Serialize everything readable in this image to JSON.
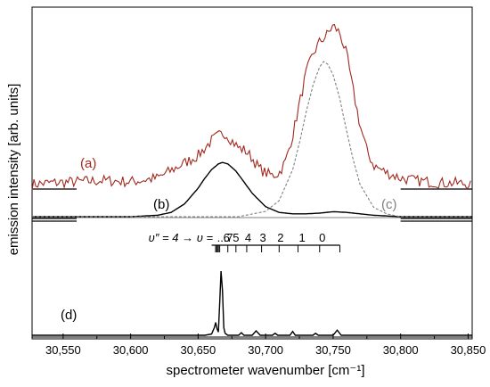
{
  "chart_data": {
    "type": "line",
    "xlabel": "spectrometer wavenumber [cm⁻¹]",
    "ylabel": "emission intensity [arb. units]",
    "xlim": [
      30527,
      30853
    ],
    "x_ticks": [
      30550,
      30600,
      30650,
      30700,
      30750,
      30800,
      30850
    ],
    "x_tick_labels": [
      "30,550",
      "30,600",
      "30,650",
      "30,700",
      "30,750",
      "30,800",
      "30,850"
    ],
    "grid": false,
    "legend": "none",
    "y_scale": "arbitrary units",
    "series": [
      {
        "name": "(a)",
        "color": "#a0281e",
        "style": "solid-noisy",
        "x": [
          30527,
          30540,
          30560,
          30580,
          30600,
          30620,
          30630,
          30640,
          30650,
          30655,
          30660,
          30665,
          30670,
          30675,
          30680,
          30685,
          30690,
          30695,
          30700,
          30705,
          30710,
          30715,
          30720,
          30725,
          30730,
          30735,
          30740,
          30745,
          30750,
          30755,
          30760,
          30765,
          30770,
          30775,
          30780,
          30790,
          30800,
          30810,
          30820,
          30830,
          30840,
          30853
        ],
        "y": [
          0.01,
          0.02,
          0.03,
          0.04,
          0.03,
          0.06,
          0.12,
          0.18,
          0.24,
          0.3,
          0.36,
          0.4,
          0.42,
          0.36,
          0.3,
          0.28,
          0.22,
          0.14,
          0.1,
          0.08,
          0.1,
          0.2,
          0.4,
          0.65,
          0.9,
          1.05,
          1.15,
          1.2,
          1.28,
          1.22,
          1.05,
          0.75,
          0.48,
          0.28,
          0.16,
          0.1,
          0.06,
          0.04,
          0.03,
          0.02,
          0.02,
          0.01
        ]
      },
      {
        "name": "(b)",
        "color": "#000000",
        "style": "solid",
        "x": [
          30527,
          30560,
          30600,
          30620,
          30630,
          30640,
          30650,
          30655,
          30660,
          30665,
          30668,
          30672,
          30678,
          30685,
          30690,
          30700,
          30710,
          30720,
          30730,
          30740,
          30750,
          30760,
          30770,
          30780,
          30790,
          30800,
          30853
        ],
        "y": [
          0.0,
          0.0,
          0.0,
          0.02,
          0.06,
          0.18,
          0.4,
          0.54,
          0.66,
          0.74,
          0.76,
          0.74,
          0.64,
          0.46,
          0.33,
          0.14,
          0.06,
          0.04,
          0.04,
          0.05,
          0.07,
          0.06,
          0.04,
          0.02,
          0.01,
          0.0,
          0.0
        ]
      },
      {
        "name": "(c)",
        "color": "#808080",
        "style": "dashed",
        "x": [
          30527,
          30680,
          30700,
          30710,
          30720,
          30725,
          30730,
          30735,
          30740,
          30743,
          30746,
          30750,
          30755,
          30760,
          30765,
          30770,
          30780,
          30790,
          30800,
          30853
        ],
        "y": [
          0.0,
          0.0,
          0.04,
          0.12,
          0.35,
          0.55,
          0.78,
          0.98,
          1.12,
          1.16,
          1.14,
          1.06,
          0.88,
          0.64,
          0.42,
          0.24,
          0.07,
          0.02,
          0.0,
          0.0
        ]
      },
      {
        "name": "(d)",
        "color": "#000000",
        "style": "solid",
        "x": [
          30527,
          30655,
          30660,
          30662,
          30663,
          30664,
          30665,
          30666,
          30667,
          30668,
          30669,
          30670,
          30672,
          30680,
          30682,
          30684,
          30690,
          30693,
          30696,
          30705,
          30707,
          30709,
          30718,
          30720,
          30722,
          30735,
          30737,
          30739,
          30750,
          30753,
          30756,
          30853
        ],
        "y": [
          0.0,
          0.0,
          0.02,
          0.12,
          0.2,
          0.1,
          0.05,
          0.5,
          1.0,
          0.7,
          0.12,
          0.03,
          0.0,
          0.0,
          0.04,
          0.0,
          0.0,
          0.07,
          0.0,
          0.0,
          0.03,
          0.0,
          0.0,
          0.06,
          0.0,
          0.0,
          0.03,
          0.0,
          0.0,
          0.08,
          0.0,
          0.0
        ]
      }
    ],
    "annotations": {
      "series_labels": [
        "(a)",
        "(b)",
        "(c)",
        "(d)"
      ],
      "vibrational_prefix": "υ″ = 4 → υ = ",
      "vibrational_labels": [
        "...7",
        "6",
        "5",
        "4",
        "3",
        "2",
        "1",
        "0"
      ],
      "vibrational_positions": [
        30666,
        30672,
        30678,
        30686,
        30697,
        30710,
        30724,
        30740,
        30755
      ]
    }
  }
}
